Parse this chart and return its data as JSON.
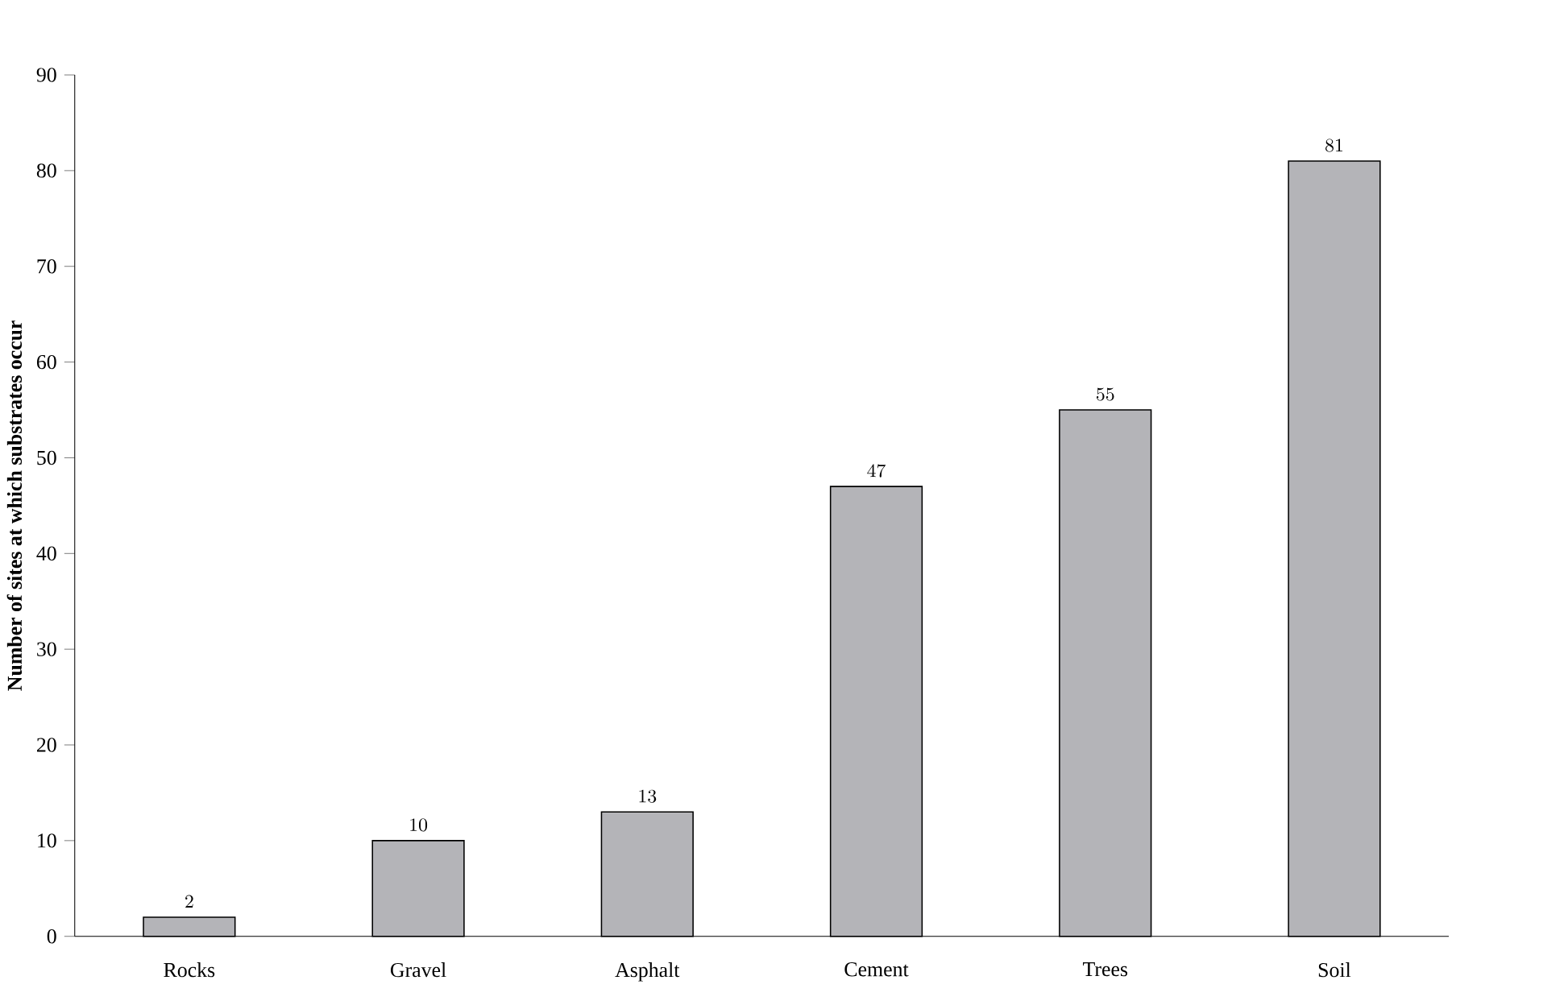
{
  "chart_data": {
    "type": "bar",
    "ylabel": "Number of sites at which substrates occur",
    "categories": [
      "Rocks",
      "Gravel",
      "Asphalt",
      "Cement",
      "Trees",
      "Soil"
    ],
    "values": [
      2,
      10,
      13,
      47,
      55,
      81
    ],
    "color": "#b4b4b8",
    "ylim": [
      0,
      90
    ],
    "yticks": [
      0,
      10,
      20,
      30,
      40,
      50,
      60,
      70,
      80,
      90
    ],
    "data_labels": true
  }
}
